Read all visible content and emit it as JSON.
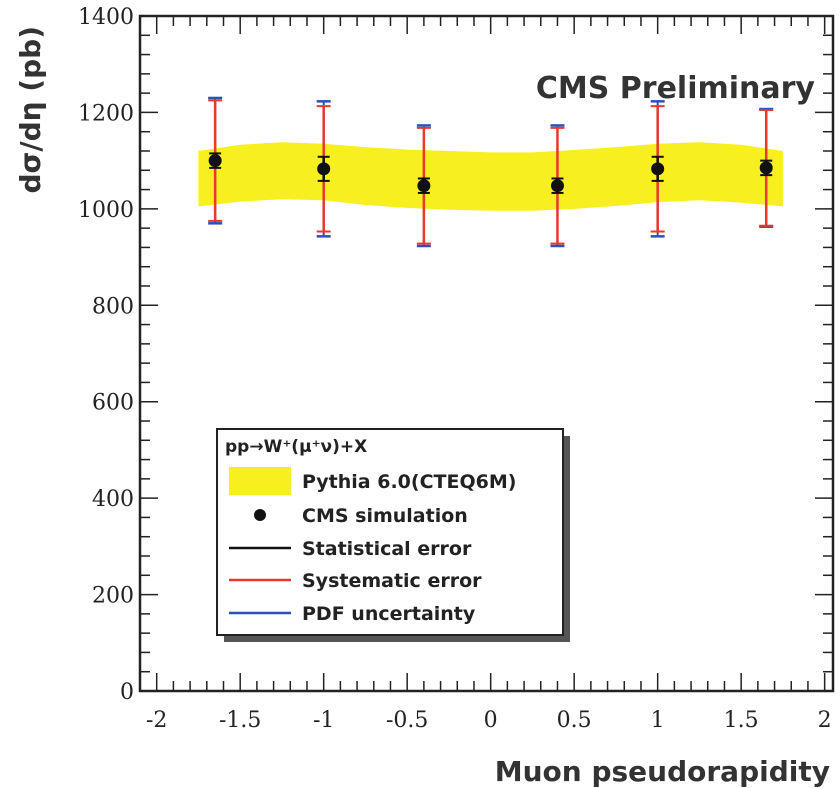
{
  "chart_data": {
    "type": "scatter",
    "annotation": "CMS Preliminary",
    "xlabel": "Muon pseudorapidity",
    "ylabel": "dσ/dη (pb)",
    "xlim": [
      -2.1,
      2.05
    ],
    "ylim": [
      0,
      1400
    ],
    "xticks": [
      "-2",
      "-1.5",
      "-1",
      "-0.5",
      "0",
      "0.5",
      "1",
      "1.5",
      "2"
    ],
    "yticks": [
      "0",
      "200",
      "400",
      "600",
      "800",
      "1000",
      "1200",
      "1400"
    ],
    "xtick_values": [
      -2,
      -1.5,
      -1,
      -0.5,
      0,
      0.5,
      1,
      1.5,
      2
    ],
    "ytick_values": [
      0,
      200,
      400,
      600,
      800,
      1000,
      1200,
      1400
    ],
    "band": {
      "name": "Pythia 6.0(CTEQ6M)",
      "color": "#f7ef1f",
      "x": [
        -1.75,
        -1.5,
        -1.25,
        -1.0,
        -0.75,
        -0.5,
        -0.25,
        0.0,
        0.25,
        0.5,
        0.75,
        1.0,
        1.25,
        1.5,
        1.75
      ],
      "upper": [
        1120,
        1133,
        1138,
        1135,
        1128,
        1123,
        1120,
        1117,
        1117,
        1122,
        1128,
        1135,
        1138,
        1133,
        1120
      ],
      "lower": [
        1005,
        1015,
        1020,
        1018,
        1008,
        1002,
        998,
        996,
        996,
        1000,
        1006,
        1014,
        1018,
        1013,
        1005
      ]
    },
    "points": {
      "name": "CMS simulation",
      "x": [
        -1.65,
        -1.0,
        -0.4,
        0.4,
        1.0,
        1.65
      ],
      "y": [
        1100,
        1083,
        1048,
        1048,
        1083,
        1085
      ],
      "stat_err": [
        15,
        25,
        15,
        15,
        25,
        15
      ],
      "syst_err": [
        125,
        130,
        120,
        120,
        130,
        120
      ],
      "pdf_err": [
        130,
        140,
        125,
        125,
        140,
        122
      ]
    },
    "legend": {
      "title": "pp→W⁺(μ⁺ν)+X",
      "entries": [
        {
          "label": "Pythia 6.0(CTEQ6M)",
          "kind": "band",
          "color": "#f7ef1f"
        },
        {
          "label": "CMS simulation",
          "kind": "marker",
          "color": "#111111"
        },
        {
          "label": "Statistical error",
          "kind": "line",
          "color": "#111111"
        },
        {
          "label": "Systematic error",
          "kind": "line",
          "color": "#e8392a"
        },
        {
          "label": "PDF uncertainty",
          "kind": "line",
          "color": "#2c50b8"
        }
      ]
    },
    "colors": {
      "stat": "#111111",
      "syst": "#e8392a",
      "pdf": "#2c50b8",
      "marker": "#111111",
      "band": "#f7ef1f"
    }
  }
}
